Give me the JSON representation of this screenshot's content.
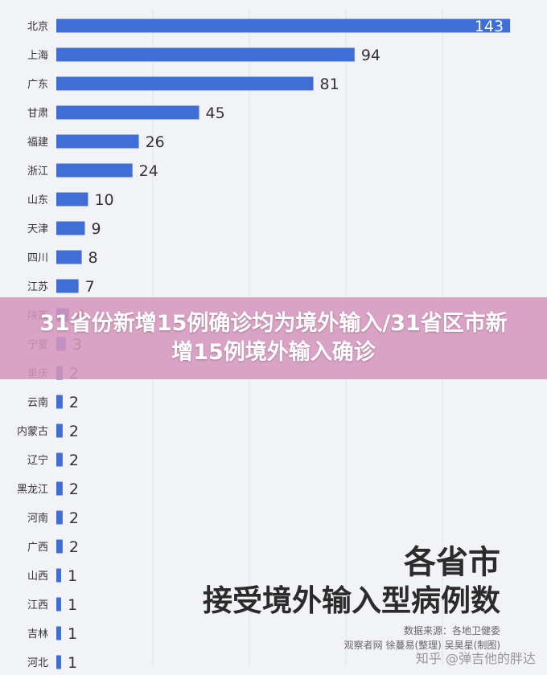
{
  "chart_data": {
    "type": "bar",
    "orientation": "horizontal",
    "categories": [
      "北京",
      "上海",
      "广东",
      "甘肃",
      "福建",
      "浙江",
      "山东",
      "天津",
      "四川",
      "江苏",
      "陕西",
      "宁夏",
      "重庆",
      "云南",
      "内蒙古",
      "辽宁",
      "黑龙江",
      "河南",
      "广西",
      "山西",
      "江西",
      "吉林",
      "河北"
    ],
    "values": [
      143,
      94,
      81,
      45,
      26,
      24,
      10,
      9,
      8,
      7,
      4,
      3,
      2,
      2,
      2,
      2,
      2,
      2,
      2,
      1,
      1,
      1,
      1
    ],
    "title_line1": "各省市",
    "title_line2": "接受境外输入型病例数",
    "xlim": [
      0,
      145
    ],
    "grid": true,
    "colors": {
      "bar": "#3f6fd6",
      "grid": "#dde1ea",
      "label": "#333333",
      "value_inside": "#ffffff"
    }
  },
  "banner": {
    "text": "31省份新增15例确诊均为境外输入/31省区市新增15例境外输入确诊"
  },
  "source": {
    "line1": "数据来源：各地卫健委",
    "line2": "观察者网 徐蔓易(整理) 吴昊星(制图)"
  },
  "watermark": {
    "text": "知乎 @弹吉他的胖达"
  }
}
